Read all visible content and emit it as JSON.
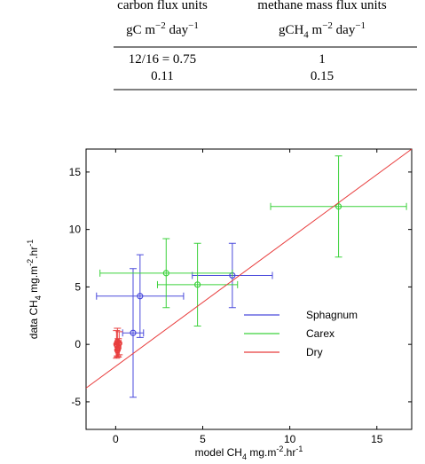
{
  "table": {
    "columns": [
      {
        "title": "carbon flux units",
        "unit": [
          {
            "text": "gC m"
          },
          {
            "text": "−2",
            "shift": "sup"
          },
          {
            "text": " day"
          },
          {
            "text": "−1",
            "shift": "sup"
          }
        ]
      },
      {
        "title": "methane mass flux units",
        "unit": [
          {
            "text": "gCH"
          },
          {
            "text": "4",
            "shift": "sub"
          },
          {
            "text": " m"
          },
          {
            "text": "−2",
            "shift": "sup"
          },
          {
            "text": " day"
          },
          {
            "text": "−1",
            "shift": "sup"
          }
        ]
      }
    ],
    "rows": [
      [
        "12/16 = 0.75",
        "1"
      ],
      [
        "0.11",
        "0.15"
      ]
    ]
  },
  "chart_data": {
    "type": "errorbar-scatter",
    "xlabel": [
      {
        "text": "model CH"
      },
      {
        "text": "4",
        "shift": "sub"
      },
      {
        "text": " mg.m"
      },
      {
        "text": "-2",
        "shift": "sup"
      },
      {
        "text": ".hr"
      },
      {
        "text": "-1",
        "shift": "sup"
      }
    ],
    "ylabel": [
      {
        "text": "data CH"
      },
      {
        "text": "4",
        "shift": "sub"
      },
      {
        "text": " mg.m"
      },
      {
        "text": "-2",
        "shift": "sup"
      },
      {
        "text": ".hr"
      },
      {
        "text": "-1",
        "shift": "sup"
      }
    ],
    "xlim": [
      -1.7,
      17
    ],
    "ylim": [
      -7.4,
      17
    ],
    "xticks": [
      0,
      5,
      10,
      15
    ],
    "yticks": [
      -5,
      0,
      5,
      10,
      15
    ],
    "legend": "lower right",
    "series": [
      {
        "name": "Sphagnum",
        "color": "#4b4bdc",
        "x": [
          1.0,
          1.4,
          6.7
        ],
        "y": [
          1.0,
          4.2,
          6.0
        ],
        "xerr": [
          0.6,
          2.5,
          2.3
        ],
        "yerr": [
          5.6,
          3.6,
          2.8
        ]
      },
      {
        "name": "Carex",
        "color": "#3cd23c",
        "x": [
          2.9,
          4.7,
          12.8
        ],
        "y": [
          6.2,
          5.2,
          12.0
        ],
        "xerr": [
          3.8,
          2.3,
          3.9
        ],
        "yerr": [
          3.0,
          3.6,
          4.4
        ]
      },
      {
        "name": "Dry",
        "color": "#e83c3c",
        "x": [
          0.05,
          0.1,
          0.15,
          0.2,
          0.1
        ],
        "y": [
          0.0,
          0.2,
          -0.3,
          0.1,
          -0.5
        ],
        "xerr": [
          0.1,
          0.1,
          0.1,
          0.1,
          0.1
        ],
        "yerr": [
          1.2,
          1.2,
          0.8,
          1.0,
          0.6
        ],
        "fit": {
          "x": [
            -1.7,
            17
          ],
          "y": [
            -3.8,
            17
          ]
        }
      }
    ]
  }
}
